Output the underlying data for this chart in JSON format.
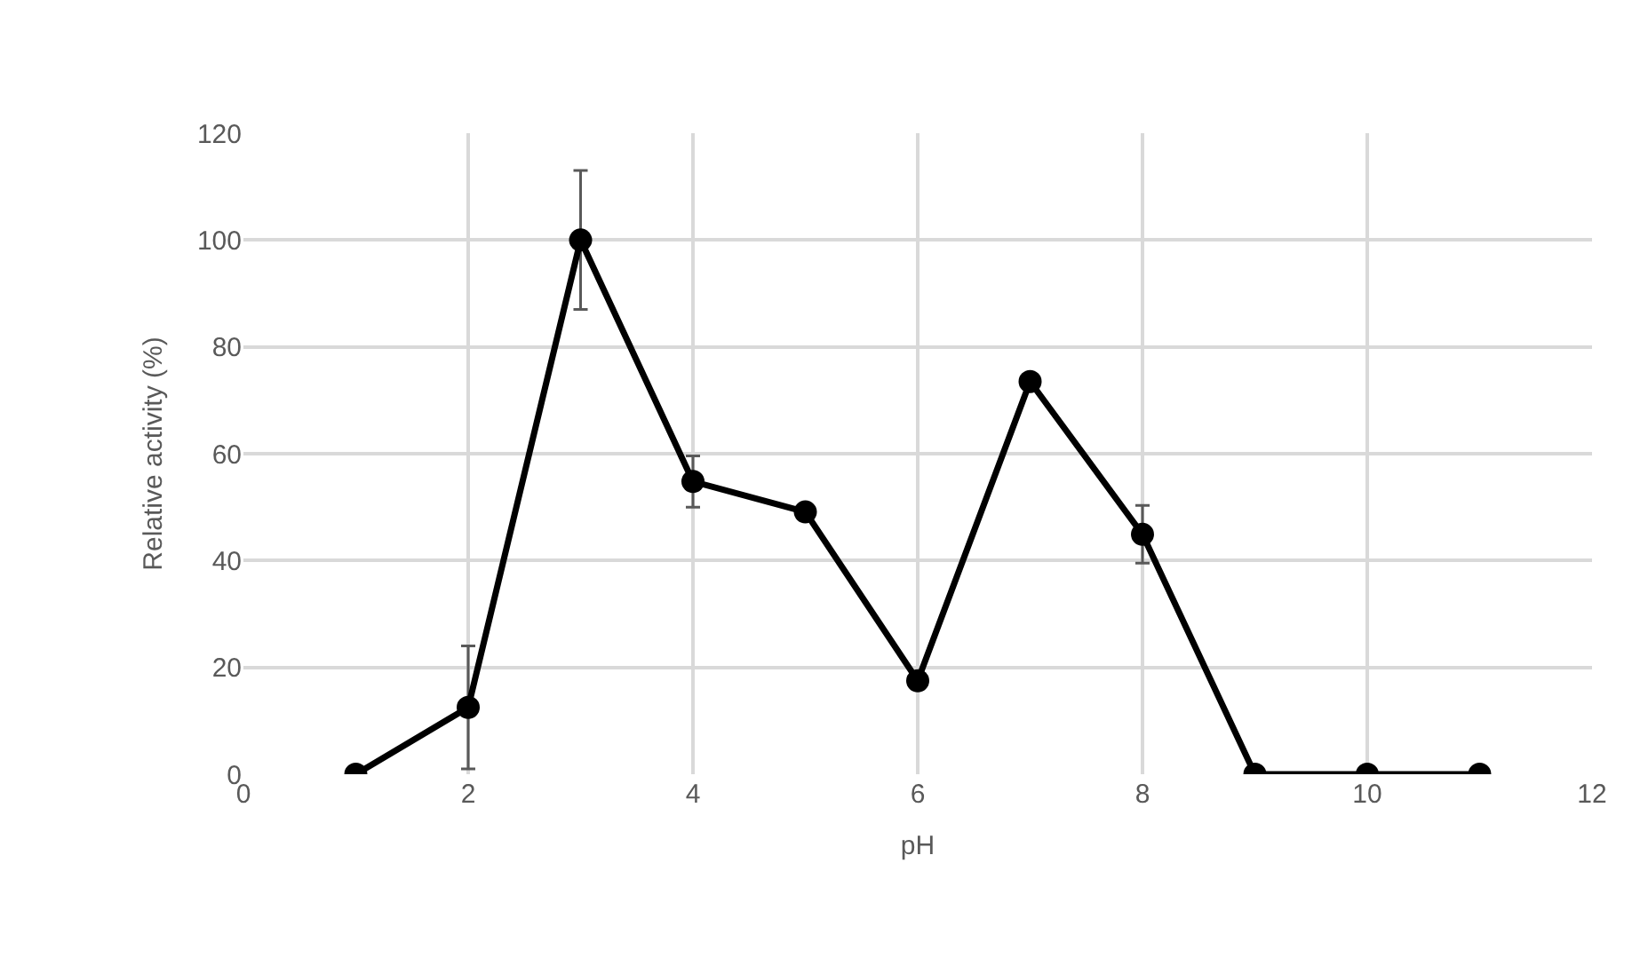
{
  "chart_data": {
    "type": "line",
    "xlabel": "pH",
    "ylabel": "Relative activity (%)",
    "x": [
      1,
      2,
      3,
      4,
      5,
      6,
      7,
      8,
      9,
      10,
      11
    ],
    "series": [
      {
        "color": "#000000",
        "values": [
          0,
          12.5,
          100,
          54.8,
          49.1,
          17.5,
          73.5,
          44.9,
          0,
          0,
          0
        ],
        "errors": [
          null,
          11.5,
          13,
          4.8,
          null,
          null,
          null,
          5.4,
          null,
          null,
          null
        ]
      }
    ],
    "xlim": [
      0,
      12
    ],
    "xticks": [
      0,
      2,
      4,
      6,
      8,
      10,
      12
    ],
    "ylim": [
      0,
      120
    ],
    "yticks": [
      0,
      20,
      40,
      60,
      80,
      100,
      120
    ],
    "grid": true,
    "legend": false,
    "marker": "circle",
    "line_style": "solid"
  }
}
